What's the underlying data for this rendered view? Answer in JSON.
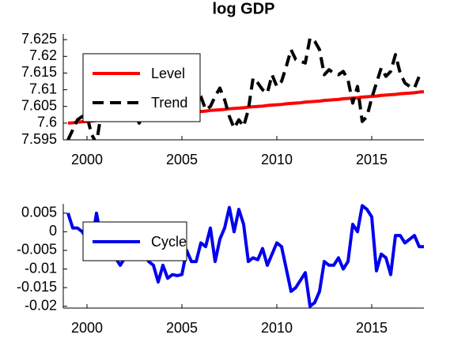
{
  "chart_data": [
    {
      "type": "line",
      "title": "log GDP",
      "x": [
        1999,
        1999.25,
        1999.5,
        1999.75,
        2000,
        2000.25,
        2000.5,
        2000.75,
        2001,
        2001.25,
        2001.5,
        2001.75,
        2002,
        2002.25,
        2002.5,
        2002.75,
        2003,
        2003.25,
        2003.5,
        2003.75,
        2004,
        2004.25,
        2004.5,
        2004.75,
        2005,
        2005.25,
        2005.5,
        2005.75,
        2006,
        2006.25,
        2006.5,
        2006.75,
        2007,
        2007.25,
        2007.5,
        2007.75,
        2008,
        2008.25,
        2008.5,
        2008.75,
        2009,
        2009.25,
        2009.5,
        2009.75,
        2010,
        2010.25,
        2010.5,
        2010.75,
        2011,
        2011.25,
        2011.5,
        2011.75,
        2012,
        2012.25,
        2012.5,
        2012.75,
        2013,
        2013.25,
        2013.5,
        2013.75,
        2014,
        2014.25,
        2014.5,
        2014.75,
        2015,
        2015.25,
        2015.5,
        2015.75,
        2016,
        2016.25,
        2016.5,
        2016.75,
        2017,
        2017.25,
        2017.5,
        2017.75
      ],
      "series": [
        {
          "name": "Level",
          "color": "#ff0000",
          "dash": false,
          "values": [
            7.6,
            7.6001,
            7.6003,
            7.6004,
            7.6005,
            7.6006,
            7.6008,
            7.6009,
            7.601,
            7.6011,
            7.6013,
            7.6014,
            7.6015,
            7.6016,
            7.6018,
            7.6019,
            7.602,
            7.6021,
            7.6023,
            7.6024,
            7.6025,
            7.6026,
            7.6028,
            7.6029,
            7.603,
            7.6031,
            7.6033,
            7.6034,
            7.6035,
            7.6036,
            7.6038,
            7.6039,
            7.604,
            7.6041,
            7.6043,
            7.6044,
            7.6045,
            7.6046,
            7.6048,
            7.6049,
            7.605,
            7.6051,
            7.6053,
            7.6054,
            7.6055,
            7.6056,
            7.6058,
            7.6059,
            7.606,
            7.6061,
            7.6063,
            7.6064,
            7.6065,
            7.6066,
            7.6068,
            7.6069,
            7.607,
            7.6071,
            7.6073,
            7.6074,
            7.6075,
            7.6076,
            7.6078,
            7.6079,
            7.608,
            7.6081,
            7.6083,
            7.6084,
            7.6085,
            7.6086,
            7.6088,
            7.6089,
            7.609,
            7.6091,
            7.6093,
            7.6094
          ]
        },
        {
          "name": "Trend",
          "color": "#000000",
          "dash": true,
          "values": [
            7.595,
            7.598,
            7.601,
            7.602,
            7.602,
            7.5965,
            7.594,
            7.603,
            7.604,
            7.6055,
            7.605,
            7.607,
            7.606,
            7.604,
            7.603,
            7.6,
            7.602,
            7.601,
            7.602,
            7.603,
            7.602,
            7.603,
            7.604,
            7.604,
            7.604,
            7.61,
            7.608,
            7.6095,
            7.608,
            7.604,
            7.605,
            7.608,
            7.6105,
            7.607,
            7.602,
            7.5985,
            7.601,
            7.599,
            7.604,
            7.6135,
            7.612,
            7.61,
            7.609,
            7.6145,
            7.611,
            7.6125,
            7.617,
            7.622,
            7.619,
            7.6185,
            7.618,
            7.6255,
            7.6245,
            7.622,
            7.6145,
            7.616,
            7.615,
            7.6145,
            7.6155,
            7.613,
            7.606,
            7.611,
            7.6005,
            7.602,
            7.6075,
            7.612,
            7.6165,
            7.614,
            7.6155,
            7.6205,
            7.615,
            7.612,
            7.611,
            7.6105,
            7.614,
            7.614
          ]
        }
      ],
      "xlim": [
        1998.75,
        2017.75
      ],
      "xticks": [
        2000,
        2005,
        2010,
        2015
      ],
      "ylim": [
        7.595,
        7.6267
      ],
      "yticks": [
        7.595,
        7.6,
        7.605,
        7.61,
        7.615,
        7.62,
        7.625
      ],
      "legend": "upper left"
    },
    {
      "type": "line",
      "x": [
        1999,
        1999.25,
        1999.5,
        1999.75,
        2000,
        2000.25,
        2000.5,
        2000.75,
        2001,
        2001.25,
        2001.5,
        2001.75,
        2002,
        2002.25,
        2002.5,
        2002.75,
        2003,
        2003.25,
        2003.5,
        2003.75,
        2004,
        2004.25,
        2004.5,
        2004.75,
        2005,
        2005.25,
        2005.5,
        2005.75,
        2006,
        2006.25,
        2006.5,
        2006.75,
        2007,
        2007.25,
        2007.5,
        2007.75,
        2008,
        2008.25,
        2008.5,
        2008.75,
        2009,
        2009.25,
        2009.5,
        2009.75,
        2010,
        2010.25,
        2010.5,
        2010.75,
        2011,
        2011.25,
        2011.5,
        2011.75,
        2012,
        2012.25,
        2012.5,
        2012.75,
        2013,
        2013.25,
        2013.5,
        2013.75,
        2014,
        2014.25,
        2014.5,
        2014.75,
        2015,
        2015.25,
        2015.5,
        2015.75,
        2016,
        2016.25,
        2016.5,
        2016.75,
        2017,
        2017.25,
        2017.5,
        2017.75
      ],
      "series": [
        {
          "name": "Cycle",
          "color": "#0000ee",
          "dash": false,
          "values": [
            0.005,
            0.001,
            0.001,
            0,
            -0.002,
            -0.003,
            0.005,
            -0.002,
            -0.004,
            -0.005,
            -0.007,
            -0.009,
            -0.007,
            -0.007,
            -0.006,
            -0.004,
            -0.006,
            -0.008,
            -0.009,
            -0.0135,
            -0.009,
            -0.0125,
            -0.0115,
            -0.0118,
            -0.0115,
            -0.005,
            -0.008,
            -0.008,
            -0.003,
            -0.004,
            0.001,
            -0.008,
            -0.002,
            0.001,
            0.0065,
            0,
            0.006,
            0.002,
            -0.008,
            -0.007,
            -0.0075,
            -0.0045,
            -0.009,
            -0.006,
            -0.003,
            -0.004,
            -0.01,
            -0.016,
            -0.015,
            -0.013,
            -0.011,
            -0.02,
            -0.019,
            -0.016,
            -0.008,
            -0.009,
            -0.009,
            -0.007,
            -0.01,
            -0.008,
            0.002,
            0,
            0.007,
            0.006,
            0.004,
            -0.0105,
            -0.006,
            -0.007,
            -0.0115,
            -0.001,
            -0.001,
            -0.003,
            -0.002,
            -0.001,
            -0.004,
            -0.004
          ]
        }
      ],
      "xlim": [
        1998.75,
        2017.75
      ],
      "xticks": [
        2000,
        2005,
        2010,
        2015
      ],
      "ylim": [
        -0.0205,
        0.0075
      ],
      "yticks": [
        0.005,
        0,
        -0.005,
        -0.01,
        -0.015,
        -0.02
      ],
      "legend": "upper left"
    }
  ]
}
